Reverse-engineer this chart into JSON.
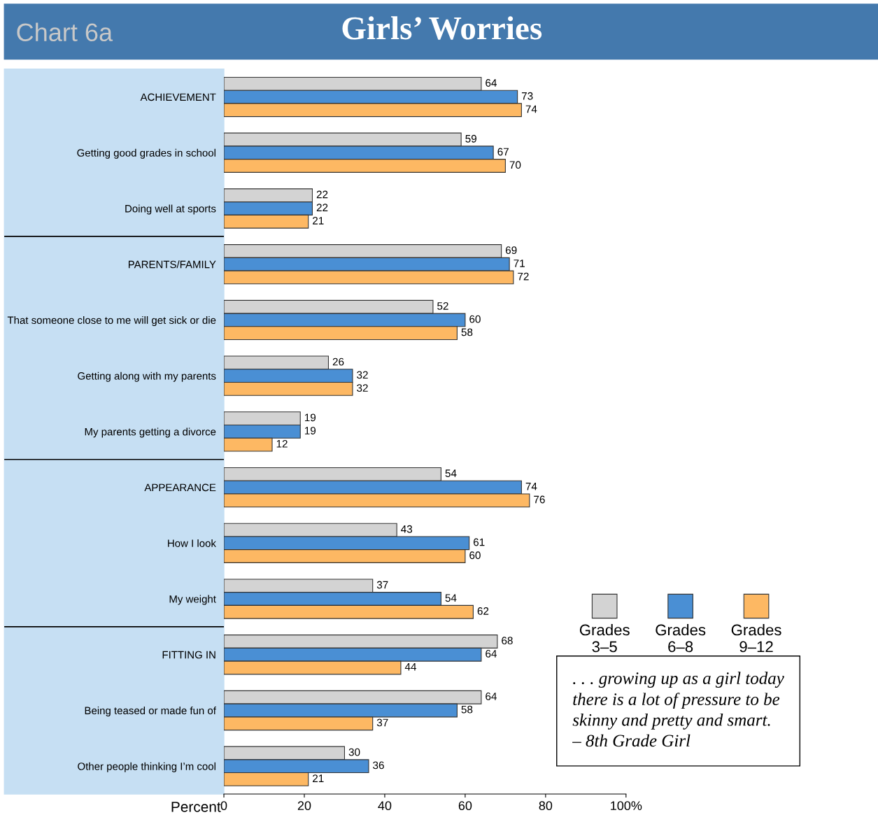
{
  "chart_data": {
    "type": "bar",
    "orientation": "horizontal",
    "title": "Girls’ Worries",
    "xlabel": "Percent",
    "categories": [
      "ACHIEVEMENT",
      "Getting good grades in school",
      "Doing well at sports",
      "PARENTS/FAMILY",
      "That someone close to me will get sick or die",
      "Getting along with my parents",
      "My parents getting a divorce",
      "APPEARANCE",
      "How I look",
      "My weight",
      "FITTING IN",
      "Being teased or made fun of",
      "Other people thinking I’m cool"
    ],
    "series": [
      {
        "name": "Grades\n3–5",
        "color": "#d3d3d3",
        "values": [
          64,
          59,
          22,
          69,
          52,
          26,
          19,
          54,
          43,
          37,
          68,
          64,
          30
        ]
      },
      {
        "name": "Grades\n6–8",
        "color": "#4a8fd4",
        "values": [
          73,
          67,
          22,
          71,
          60,
          32,
          19,
          74,
          61,
          54,
          64,
          58,
          36
        ]
      },
      {
        "name": "Grades\n9–12",
        "color": "#fdb863",
        "values": [
          74,
          70,
          21,
          72,
          58,
          32,
          12,
          76,
          60,
          62,
          44,
          37,
          21
        ]
      }
    ],
    "xlim": [
      0,
      100
    ],
    "xticks": [
      0,
      20,
      40,
      60,
      80,
      {
        "value": 100,
        "label": "100%"
      }
    ],
    "data_labels": true,
    "grid": false,
    "legend": "right",
    "annotations": [
      "Chart 6a",
      ". . . growing up as a girl today\nthere is a lot of pressure to be\nskinny and pretty and smart.\n– 8th Grade Girl"
    ]
  }
}
